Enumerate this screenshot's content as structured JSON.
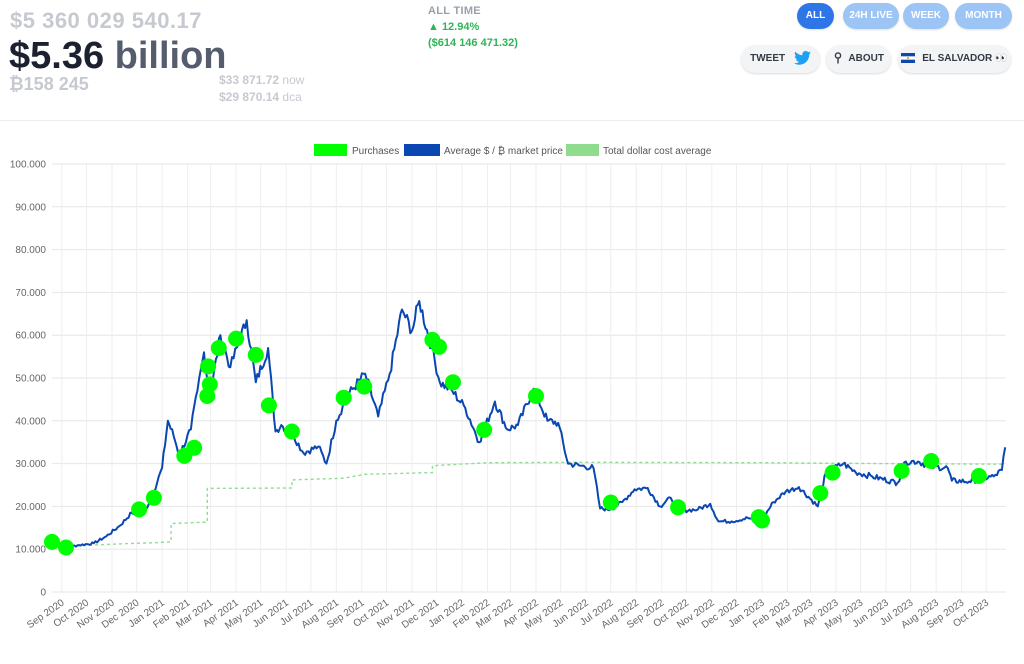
{
  "header": {
    "total_usd_full": "$5 360 029 540.17",
    "headline_value": "$5.36",
    "headline_unit": "billion",
    "btc_amount": "₿158 245",
    "price_now": "$33 871.72",
    "price_now_label": "now",
    "price_dca": "$29 870.14",
    "price_dca_label": "dca",
    "all_time_label": "ALL TIME",
    "all_time_pct": "▲ 12.94%",
    "all_time_usd": "($614 146 471.32)"
  },
  "range_buttons": [
    {
      "label": "ALL",
      "active": true
    },
    {
      "label": "24H LIVE",
      "active": false
    },
    {
      "label": "WEEK",
      "active": false
    },
    {
      "label": "MONTH",
      "active": false
    }
  ],
  "actions": {
    "tweet": "TWEET",
    "about": "ABOUT",
    "country": "EL SALVADOR 👀"
  },
  "colors": {
    "purchases": "#00ff00",
    "price_line": "#0a47b3",
    "dca": "#8fdc8f",
    "accent": "#2e76e8",
    "positive": "#2fb457"
  },
  "chart_data": {
    "type": "line",
    "legend": [
      "Purchases",
      "Average $ / ₿ market price",
      "Total dollar cost average"
    ],
    "legend_position": "top",
    "grid": true,
    "ylim": [
      0,
      100000
    ],
    "y_ticks": [
      "0",
      "10.000",
      "20.000",
      "30.000",
      "40.000",
      "50.000",
      "60.000",
      "70.000",
      "80.000",
      "90.000",
      "100.000"
    ],
    "x_ticks": [
      "Sep 2020",
      "Oct 2020",
      "Nov 2020",
      "Dec 2020",
      "Jan 2021",
      "Feb 2021",
      "Mar 2021",
      "Apr 2021",
      "May 2021",
      "Jun 2021",
      "Jul 2021",
      "Aug 2021",
      "Sep 2021",
      "Oct 2021",
      "Nov 2021",
      "Dec 2021",
      "Jan 2022",
      "Feb 2022",
      "Mar 2022",
      "Apr 2022",
      "May 2022",
      "Jun 2022",
      "Jul 2022",
      "Aug 2022",
      "Sep 2022",
      "Oct 2022",
      "Nov 2022",
      "Dec 2022",
      "Jan 2023",
      "Feb 2023",
      "Mar 2023",
      "Apr 2023",
      "May 2023",
      "Jun 2023",
      "Jul 2023",
      "Aug 2023",
      "Sep 2023",
      "Oct 2023"
    ],
    "x_range": [
      "2020-08-20",
      "2023-10-25"
    ],
    "series": [
      {
        "name": "Average $ / ₿ market price",
        "points": [
          [
            "2020-08-20",
            11700
          ],
          [
            "2020-09-05",
            10400
          ],
          [
            "2020-09-20",
            10900
          ],
          [
            "2020-10-10",
            11400
          ],
          [
            "2020-10-25",
            13000
          ],
          [
            "2020-11-10",
            15400
          ],
          [
            "2020-11-25",
            18500
          ],
          [
            "2020-12-10",
            18400
          ],
          [
            "2020-12-22",
            23500
          ],
          [
            "2021-01-01",
            29000
          ],
          [
            "2021-01-08",
            40000
          ],
          [
            "2021-01-15",
            36500
          ],
          [
            "2021-01-22",
            32000
          ],
          [
            "2021-02-05",
            38000
          ],
          [
            "2021-02-13",
            47000
          ],
          [
            "2021-02-21",
            56000
          ],
          [
            "2021-02-28",
            45500
          ],
          [
            "2021-03-13",
            60000
          ],
          [
            "2021-03-25",
            52500
          ],
          [
            "2021-04-14",
            63500
          ],
          [
            "2021-04-25",
            49000
          ],
          [
            "2021-05-10",
            57000
          ],
          [
            "2021-05-19",
            37500
          ],
          [
            "2021-05-26",
            39000
          ],
          [
            "2021-06-10",
            36500
          ],
          [
            "2021-06-22",
            32500
          ],
          [
            "2021-07-10",
            34000
          ],
          [
            "2021-07-20",
            30000
          ],
          [
            "2021-08-01",
            40000
          ],
          [
            "2021-08-15",
            46000
          ],
          [
            "2021-09-05",
            51000
          ],
          [
            "2021-09-21",
            41000
          ],
          [
            "2021-10-05",
            51000
          ],
          [
            "2021-10-20",
            66000
          ],
          [
            "2021-11-01",
            61000
          ],
          [
            "2021-11-10",
            68000
          ],
          [
            "2021-11-25",
            57000
          ],
          [
            "2021-12-05",
            49000
          ],
          [
            "2021-12-20",
            47000
          ],
          [
            "2022-01-05",
            43000
          ],
          [
            "2022-01-22",
            35000
          ],
          [
            "2022-02-10",
            44500
          ],
          [
            "2022-02-25",
            38000
          ],
          [
            "2022-03-10",
            39000
          ],
          [
            "2022-03-29",
            47500
          ],
          [
            "2022-04-15",
            40000
          ],
          [
            "2022-04-28",
            39500
          ],
          [
            "2022-05-10",
            30000
          ],
          [
            "2022-05-25",
            29500
          ],
          [
            "2022-06-10",
            29000
          ],
          [
            "2022-06-18",
            19500
          ],
          [
            "2022-07-01",
            19300
          ],
          [
            "2022-07-15",
            21000
          ],
          [
            "2022-07-30",
            24000
          ],
          [
            "2022-08-15",
            24300
          ],
          [
            "2022-08-30",
            20000
          ],
          [
            "2022-09-12",
            22000
          ],
          [
            "2022-09-25",
            19000
          ],
          [
            "2022-10-15",
            19300
          ],
          [
            "2022-10-30",
            20600
          ],
          [
            "2022-11-09",
            16500
          ],
          [
            "2022-11-25",
            16500
          ],
          [
            "2022-12-15",
            17300
          ],
          [
            "2022-12-31",
            16600
          ],
          [
            "2023-01-15",
            21000
          ],
          [
            "2023-01-30",
            23500
          ],
          [
            "2023-02-15",
            24500
          ],
          [
            "2023-03-10",
            20000
          ],
          [
            "2023-03-20",
            28000
          ],
          [
            "2023-04-10",
            30000
          ],
          [
            "2023-04-25",
            28000
          ],
          [
            "2023-05-15",
            27000
          ],
          [
            "2023-06-15",
            25500
          ],
          [
            "2023-06-25",
            30500
          ],
          [
            "2023-07-10",
            30500
          ],
          [
            "2023-07-25",
            29300
          ],
          [
            "2023-08-15",
            29000
          ],
          [
            "2023-08-20",
            26000
          ],
          [
            "2023-09-10",
            25800
          ],
          [
            "2023-09-25",
            26500
          ],
          [
            "2023-10-10",
            27000
          ],
          [
            "2023-10-20",
            28500
          ],
          [
            "2023-10-24",
            33800
          ]
        ]
      },
      {
        "name": "Total dollar cost average",
        "points": [
          [
            "2020-09-05",
            10800
          ],
          [
            "2020-10-01",
            10900
          ],
          [
            "2020-11-20",
            11300
          ],
          [
            "2020-12-20",
            11500
          ],
          [
            "2021-01-12",
            11700
          ],
          [
            "2021-01-12",
            16000
          ],
          [
            "2021-02-25",
            16300
          ],
          [
            "2021-02-25",
            24200
          ],
          [
            "2021-06-08",
            24300
          ],
          [
            "2021-06-08",
            26200
          ],
          [
            "2021-08-10",
            26600
          ],
          [
            "2021-09-05",
            27500
          ],
          [
            "2021-11-26",
            27900
          ],
          [
            "2021-11-26",
            29500
          ],
          [
            "2022-02-01",
            30200
          ],
          [
            "2022-06-01",
            30300
          ],
          [
            "2022-12-31",
            30200
          ],
          [
            "2023-06-01",
            30000
          ],
          [
            "2023-10-24",
            29870
          ]
        ]
      }
    ],
    "purchases": [
      [
        "2020-08-20",
        11700
      ],
      [
        "2020-09-06",
        10400
      ],
      [
        "2020-12-04",
        19300
      ],
      [
        "2020-12-22",
        22000
      ],
      [
        "2021-01-28",
        31800
      ],
      [
        "2021-02-09",
        33700
      ],
      [
        "2021-02-25",
        45800
      ],
      [
        "2021-02-28",
        48500
      ],
      [
        "2021-02-26",
        52700
      ],
      [
        "2021-03-11",
        57000
      ],
      [
        "2021-04-01",
        59200
      ],
      [
        "2021-04-25",
        55400
      ],
      [
        "2021-05-11",
        43600
      ],
      [
        "2021-06-08",
        37500
      ],
      [
        "2021-08-10",
        45400
      ],
      [
        "2021-09-04",
        48000
      ],
      [
        "2021-11-26",
        58900
      ],
      [
        "2021-12-04",
        57300
      ],
      [
        "2021-12-21",
        49000
      ],
      [
        "2022-01-28",
        37900
      ],
      [
        "2022-04-01",
        45800
      ],
      [
        "2022-07-01",
        20900
      ],
      [
        "2022-09-21",
        19800
      ],
      [
        "2022-12-28",
        17500
      ],
      [
        "2023-01-01",
        16700
      ],
      [
        "2023-03-13",
        23100
      ],
      [
        "2023-03-28",
        27900
      ],
      [
        "2023-06-20",
        28300
      ],
      [
        "2023-07-26",
        30600
      ],
      [
        "2023-09-22",
        27100
      ]
    ]
  }
}
